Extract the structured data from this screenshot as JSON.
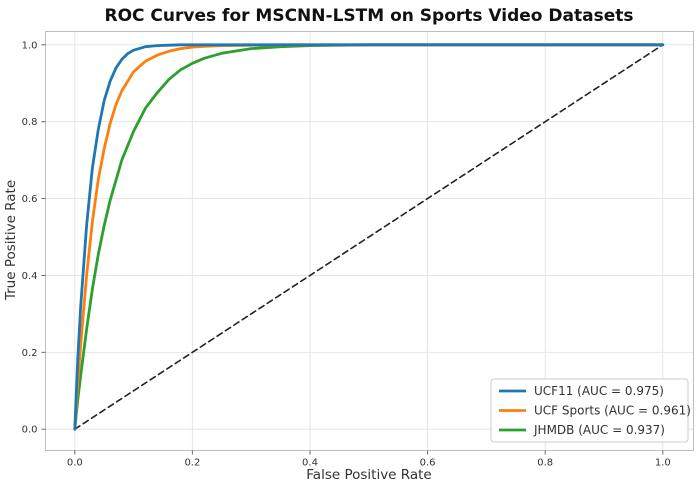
{
  "chart_data": {
    "type": "line",
    "title": "ROC Curves for MSCNN-LSTM on Sports Video Datasets",
    "xlabel": "False Positive Rate",
    "ylabel": "True Positive Rate",
    "xlim": [
      -0.05,
      1.05
    ],
    "ylim": [
      -0.05,
      1.05
    ],
    "xticks": [
      "0.0",
      "0.2",
      "0.4",
      "0.6",
      "0.8",
      "1.0"
    ],
    "yticks": [
      "0.0",
      "0.2",
      "0.4",
      "0.6",
      "0.8",
      "1.0"
    ],
    "grid": true,
    "legend_position": "bottom-right",
    "series": [
      {
        "name": "UCF11 (AUC = 0.975)",
        "color": "#1f77b4",
        "x": [
          0,
          0.005,
          0.01,
          0.02,
          0.03,
          0.04,
          0.05,
          0.06,
          0.07,
          0.08,
          0.09,
          0.1,
          0.12,
          0.14,
          0.16,
          0.18,
          0.2,
          0.25,
          0.3,
          0.4,
          0.5,
          0.6,
          0.8,
          1.0
        ],
        "y": [
          0,
          0.18,
          0.32,
          0.53,
          0.68,
          0.78,
          0.855,
          0.905,
          0.94,
          0.962,
          0.977,
          0.986,
          0.995,
          0.998,
          0.999,
          1.0,
          1.0,
          1.0,
          1.0,
          1.0,
          1.0,
          1.0,
          1.0,
          1.0
        ]
      },
      {
        "name": "UCF Sports (AUC = 0.961)",
        "color": "#ff7f0e",
        "x": [
          0,
          0.005,
          0.01,
          0.02,
          0.03,
          0.04,
          0.05,
          0.06,
          0.07,
          0.08,
          0.1,
          0.12,
          0.14,
          0.16,
          0.18,
          0.2,
          0.22,
          0.25,
          0.3,
          0.35,
          0.4,
          0.5,
          0.6,
          0.8,
          1.0
        ],
        "y": [
          0,
          0.12,
          0.22,
          0.4,
          0.54,
          0.65,
          0.73,
          0.795,
          0.845,
          0.88,
          0.93,
          0.957,
          0.973,
          0.983,
          0.99,
          0.994,
          0.996,
          0.998,
          0.999,
          1.0,
          1.0,
          1.0,
          1.0,
          1.0,
          1.0
        ]
      },
      {
        "name": "JHMDB (AUC = 0.937)",
        "color": "#2ca02c",
        "x": [
          0,
          0.005,
          0.01,
          0.02,
          0.03,
          0.04,
          0.05,
          0.06,
          0.08,
          0.1,
          0.12,
          0.14,
          0.16,
          0.18,
          0.2,
          0.22,
          0.25,
          0.3,
          0.35,
          0.4,
          0.45,
          0.5,
          0.6,
          0.8,
          1.0
        ],
        "y": [
          0,
          0.075,
          0.14,
          0.26,
          0.365,
          0.455,
          0.53,
          0.595,
          0.7,
          0.775,
          0.835,
          0.875,
          0.91,
          0.935,
          0.952,
          0.965,
          0.978,
          0.99,
          0.995,
          0.998,
          0.999,
          1.0,
          1.0,
          1.0,
          1.0
        ]
      },
      {
        "name": "",
        "color": "#222222",
        "dashed": true,
        "x": [
          0,
          1
        ],
        "y": [
          0,
          1
        ]
      }
    ]
  }
}
